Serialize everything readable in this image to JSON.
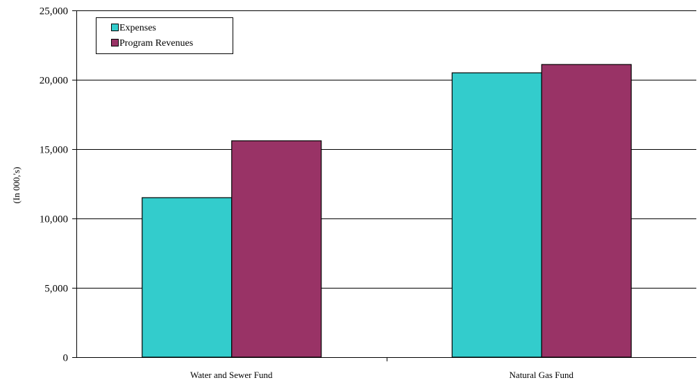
{
  "chart_data": {
    "type": "bar",
    "title": "",
    "xlabel": "",
    "ylabel": "(In 000,'s)",
    "categories": [
      "Water and Sewer Fund",
      "Natural Gas Fund"
    ],
    "series": [
      {
        "name": "Expenses",
        "values": [
          11500,
          20500
        ],
        "color": "#33CCCC"
      },
      {
        "name": "Program Revenues",
        "values": [
          15600,
          21100
        ],
        "color": "#993366"
      }
    ],
    "ylim": [
      0,
      25000
    ],
    "yticks": [
      0,
      5000,
      10000,
      15000,
      20000,
      25000
    ],
    "ytick_labels": [
      "0",
      "5,000",
      "10,000",
      "15,000",
      "20,000",
      "25,000"
    ],
    "grid": true,
    "legend_position": "top-left"
  }
}
